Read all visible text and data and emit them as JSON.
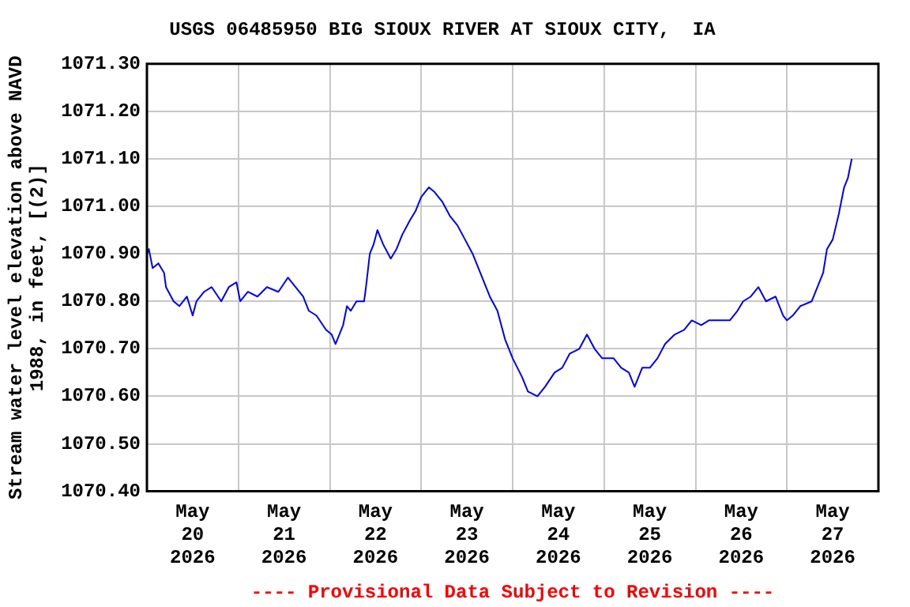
{
  "chart_data": {
    "type": "line",
    "title": "USGS 06485950 BIG SIOUX RIVER AT SIOUX CITY,  IA",
    "ylabel": "Stream water level elevation above NAVD 1988, in feet, [(2)]",
    "annotations": [
      "---- Provisional Data Subject to Revision ----"
    ],
    "x": [
      "2026-05-20T00:00",
      "2026-05-20T00:30",
      "2026-05-20T01:30",
      "2026-05-20T03:00",
      "2026-05-20T04:30",
      "2026-05-20T05:00",
      "2026-05-20T07:00",
      "2026-05-20T08:30",
      "2026-05-20T10:30",
      "2026-05-20T12:00",
      "2026-05-20T13:00",
      "2026-05-20T15:00",
      "2026-05-20T17:00",
      "2026-05-20T19:30",
      "2026-05-20T21:30",
      "2026-05-20T23:30",
      "2026-05-21T00:30",
      "2026-05-21T02:30",
      "2026-05-21T05:00",
      "2026-05-21T07:30",
      "2026-05-21T10:30",
      "2026-05-21T13:00",
      "2026-05-21T15:00",
      "2026-05-21T17:00",
      "2026-05-21T18:30",
      "2026-05-21T20:30",
      "2026-05-21T23:00",
      "2026-05-22T00:30",
      "2026-05-22T01:30",
      "2026-05-22T03:30",
      "2026-05-22T04:30",
      "2026-05-22T05:30",
      "2026-05-22T07:00",
      "2026-05-22T09:00",
      "2026-05-22T09:30",
      "2026-05-22T10:30",
      "2026-05-22T11:30",
      "2026-05-22T12:30",
      "2026-05-22T14:00",
      "2026-05-22T16:00",
      "2026-05-22T17:30",
      "2026-05-22T19:00",
      "2026-05-22T21:00",
      "2026-05-22T22:30",
      "2026-05-23T00:00",
      "2026-05-23T02:00",
      "2026-05-23T03:30",
      "2026-05-23T05:30",
      "2026-05-23T07:30",
      "2026-05-23T09:30",
      "2026-05-23T11:30",
      "2026-05-23T13:30",
      "2026-05-23T16:00",
      "2026-05-23T18:00",
      "2026-05-23T20:00",
      "2026-05-23T22:00",
      "2026-05-24T00:00",
      "2026-05-24T02:30",
      "2026-05-24T04:00",
      "2026-05-24T06:30",
      "2026-05-24T08:30",
      "2026-05-24T11:00",
      "2026-05-24T13:00",
      "2026-05-24T15:00",
      "2026-05-24T17:30",
      "2026-05-24T19:30",
      "2026-05-24T21:30",
      "2026-05-24T23:30",
      "2026-05-25T02:30",
      "2026-05-25T04:30",
      "2026-05-25T06:30",
      "2026-05-25T08:00",
      "2026-05-25T10:00",
      "2026-05-25T12:00",
      "2026-05-25T14:00",
      "2026-05-25T16:00",
      "2026-05-25T18:30",
      "2026-05-25T21:00",
      "2026-05-25T23:00",
      "2026-05-26T01:30",
      "2026-05-26T03:30",
      "2026-05-26T06:00",
      "2026-05-26T09:00",
      "2026-05-26T11:00",
      "2026-05-26T12:30",
      "2026-05-26T14:30",
      "2026-05-26T16:30",
      "2026-05-26T18:30",
      "2026-05-26T21:00",
      "2026-05-26T23:00",
      "2026-05-27T00:00",
      "2026-05-27T01:30",
      "2026-05-27T03:30",
      "2026-05-27T06:30",
      "2026-05-27T08:00",
      "2026-05-27T09:30",
      "2026-05-27T10:30",
      "2026-05-27T12:00",
      "2026-05-27T13:30",
      "2026-05-27T15:00",
      "2026-05-27T16:00",
      "2026-05-27T17:00"
    ],
    "series": [
      {
        "color": "#0000ff",
        "values": [
          1070.9,
          1070.91,
          1070.87,
          1070.88,
          1070.86,
          1070.83,
          1070.8,
          1070.79,
          1070.81,
          1070.77,
          1070.8,
          1070.82,
          1070.83,
          1070.8,
          1070.83,
          1070.84,
          1070.8,
          1070.82,
          1070.81,
          1070.83,
          1070.82,
          1070.85,
          1070.83,
          1070.81,
          1070.78,
          1070.77,
          1070.74,
          1070.73,
          1070.71,
          1070.75,
          1070.79,
          1070.78,
          1070.8,
          1070.8,
          1070.83,
          1070.9,
          1070.92,
          1070.95,
          1070.92,
          1070.89,
          1070.91,
          1070.94,
          1070.97,
          1070.99,
          1071.02,
          1071.04,
          1071.03,
          1071.01,
          1070.98,
          1070.96,
          1070.93,
          1070.9,
          1070.85,
          1070.81,
          1070.78,
          1070.72,
          1070.68,
          1070.64,
          1070.61,
          1070.6,
          1070.62,
          1070.65,
          1070.66,
          1070.69,
          1070.7,
          1070.73,
          1070.7,
          1070.68,
          1070.68,
          1070.66,
          1070.65,
          1070.62,
          1070.66,
          1070.66,
          1070.68,
          1070.71,
          1070.73,
          1070.74,
          1070.76,
          1070.75,
          1070.76,
          1070.76,
          1070.76,
          1070.78,
          1070.8,
          1070.81,
          1070.83,
          1070.8,
          1070.81,
          1070.77,
          1070.76,
          1070.77,
          1070.79,
          1070.8,
          1070.83,
          1070.86,
          1070.91,
          1070.93,
          1070.98,
          1071.04,
          1071.06,
          1071.1
        ]
      }
    ],
    "xlim": [
      "2026-05-20T00:00",
      "2026-05-28T00:00"
    ],
    "xticks": [
      {
        "value": "2026-05-20T12:00",
        "label": "May 20 2026"
      },
      {
        "value": "2026-05-21T00:00",
        "label": null
      },
      {
        "value": "2026-05-21T12:00",
        "label": "May 21 2026"
      },
      {
        "value": "2026-05-22T00:00",
        "label": null
      },
      {
        "value": "2026-05-22T12:00",
        "label": "May 22 2026"
      },
      {
        "value": "2026-05-23T00:00",
        "label": null
      },
      {
        "value": "2026-05-23T12:00",
        "label": "May 23 2026"
      },
      {
        "value": "2026-05-24T00:00",
        "label": null
      },
      {
        "value": "2026-05-24T12:00",
        "label": "May 24 2026"
      },
      {
        "value": "2026-05-25T00:00",
        "label": null
      },
      {
        "value": "2026-05-25T12:00",
        "label": "May 25 2026"
      },
      {
        "value": "2026-05-26T00:00",
        "label": null
      },
      {
        "value": "2026-05-26T12:00",
        "label": "May 26 2026"
      },
      {
        "value": "2026-05-27T00:00",
        "label": null
      },
      {
        "value": "2026-05-27T12:00",
        "label": "May 27 2026"
      }
    ],
    "ylim": [
      1070.4,
      1071.3
    ],
    "yticks": [
      {
        "value": 1070.4,
        "label": "1070.40"
      },
      {
        "value": 1070.5,
        "label": "1070.50"
      },
      {
        "value": 1070.6,
        "label": "1070.60"
      },
      {
        "value": 1070.7,
        "label": "1070.70"
      },
      {
        "value": 1070.8,
        "label": "1070.80"
      },
      {
        "value": 1070.9,
        "label": "1070.90"
      },
      {
        "value": 1071.0,
        "label": "1071.00"
      },
      {
        "value": 1071.1,
        "label": "1071.10"
      },
      {
        "value": 1071.2,
        "label": "1071.20"
      },
      {
        "value": 1071.3,
        "label": "1071.30"
      }
    ],
    "grid": true,
    "legend": false,
    "marker": "none",
    "line_style": "solid"
  }
}
